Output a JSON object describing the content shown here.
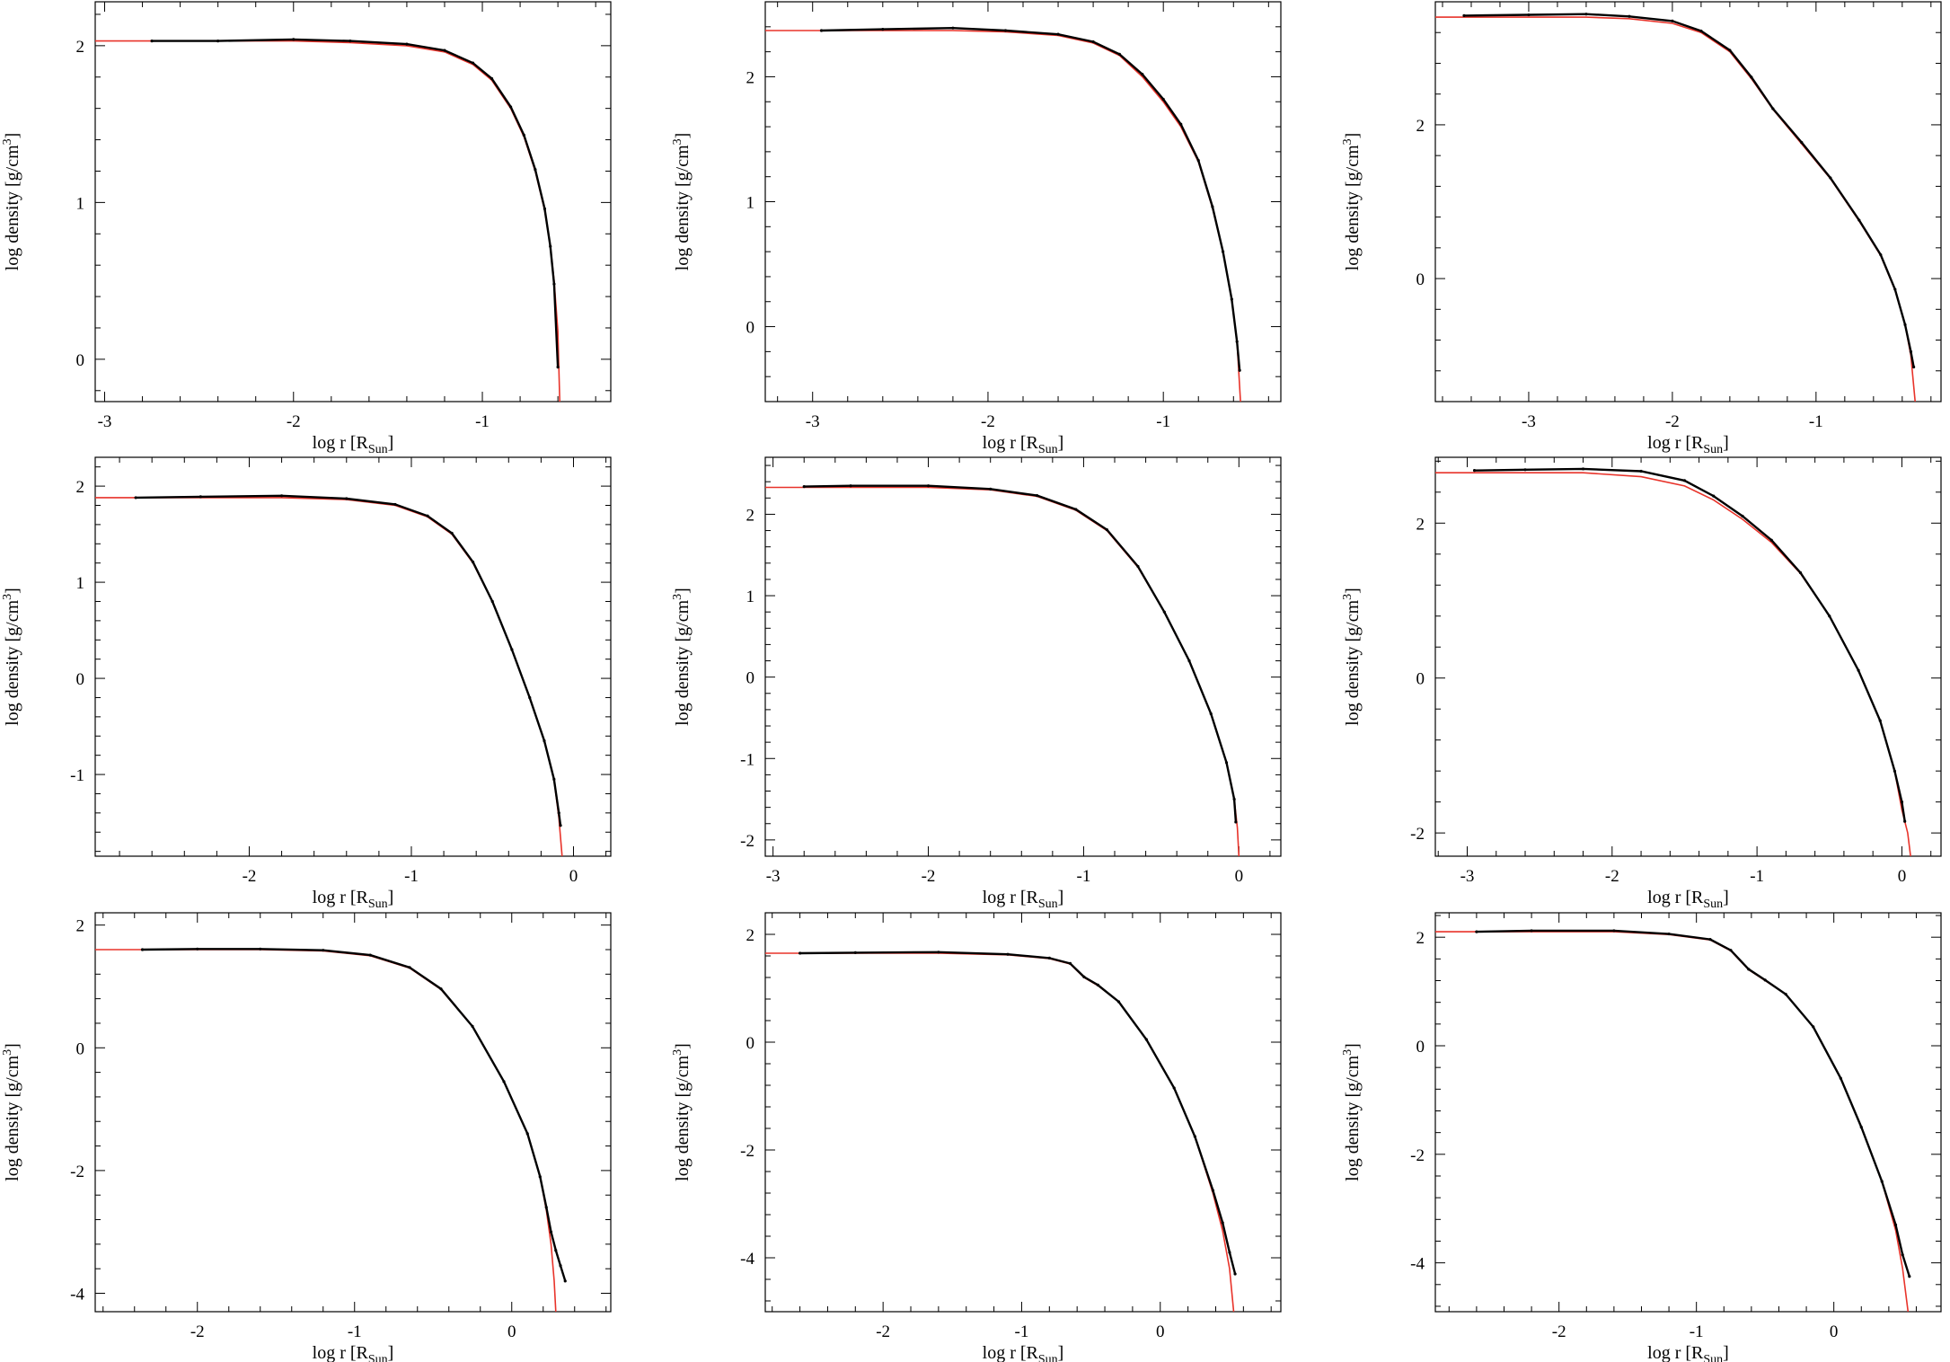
{
  "figure": {
    "xlabel_main": "log r [R",
    "xlabel_sub": "Sun",
    "xlabel_end": "]",
    "ylabel_main": "log density [g/cm",
    "ylabel_sup": "3",
    "ylabel_end": "]"
  },
  "colors": {
    "particles": "#000000",
    "fit": "#e8332a",
    "frame": "#000000",
    "background": "#ffffff"
  },
  "chart_data": [
    {
      "type": "line",
      "panel": "row1-col1",
      "xlim": [
        -3.05,
        -0.32
      ],
      "ylim": [
        -0.27,
        2.28
      ],
      "xticks": [
        -3,
        -2,
        -1
      ],
      "yticks": [
        0,
        1,
        2
      ],
      "series": [
        {
          "role": "fit-red",
          "x": [
            -3.05,
            -2.4,
            -2.0,
            -1.7,
            -1.4,
            -1.2,
            -1.05,
            -0.95,
            -0.85,
            -0.78,
            -0.72,
            -0.67,
            -0.64,
            -0.62,
            -0.6,
            -0.59
          ],
          "y": [
            2.03,
            2.03,
            2.03,
            2.02,
            2.0,
            1.96,
            1.88,
            1.78,
            1.6,
            1.42,
            1.2,
            0.95,
            0.72,
            0.5,
            0.18,
            -0.27
          ]
        },
        {
          "role": "particles-black",
          "x": [
            -2.75,
            -2.4,
            -2.0,
            -1.7,
            -1.4,
            -1.2,
            -1.05,
            -0.95,
            -0.85,
            -0.78,
            -0.72,
            -0.67,
            -0.64,
            -0.62,
            -0.6
          ],
          "y": [
            2.03,
            2.03,
            2.04,
            2.03,
            2.01,
            1.97,
            1.89,
            1.79,
            1.61,
            1.43,
            1.21,
            0.96,
            0.72,
            0.48,
            -0.05
          ]
        }
      ]
    },
    {
      "type": "line",
      "panel": "row1-col2",
      "xlim": [
        -3.27,
        -0.33
      ],
      "ylim": [
        -0.6,
        2.6
      ],
      "xticks": [
        -3,
        -2,
        -1
      ],
      "yticks": [
        0,
        1,
        2
      ],
      "series": [
        {
          "role": "fit-red",
          "x": [
            -3.27,
            -2.6,
            -2.2,
            -1.9,
            -1.6,
            -1.4,
            -1.25,
            -1.12,
            -1.0,
            -0.9,
            -0.8,
            -0.72,
            -0.66,
            -0.61,
            -0.58,
            -0.56
          ],
          "y": [
            2.37,
            2.37,
            2.37,
            2.36,
            2.33,
            2.27,
            2.17,
            2.0,
            1.8,
            1.6,
            1.32,
            0.95,
            0.6,
            0.22,
            -0.12,
            -0.6
          ]
        },
        {
          "role": "particles-black",
          "x": [
            -2.95,
            -2.6,
            -2.2,
            -1.9,
            -1.6,
            -1.4,
            -1.25,
            -1.12,
            -1.0,
            -0.9,
            -0.8,
            -0.72,
            -0.66,
            -0.61,
            -0.58,
            -0.565
          ],
          "y": [
            2.37,
            2.38,
            2.39,
            2.37,
            2.34,
            2.28,
            2.18,
            2.02,
            1.82,
            1.62,
            1.33,
            0.96,
            0.6,
            0.22,
            -0.12,
            -0.35
          ]
        }
      ]
    },
    {
      "type": "line",
      "panel": "row1-col3",
      "xlim": [
        -3.65,
        -0.13
      ],
      "ylim": [
        -1.6,
        3.6
      ],
      "xticks": [
        -3,
        -2,
        -1
      ],
      "yticks": [
        0,
        2
      ],
      "series": [
        {
          "role": "fit-red",
          "x": [
            -3.65,
            -3.0,
            -2.6,
            -2.3,
            -2.0,
            -1.8,
            -1.6,
            -1.45,
            -1.3,
            -1.1,
            -0.9,
            -0.7,
            -0.55,
            -0.45,
            -0.38,
            -0.34,
            -0.31
          ],
          "y": [
            3.4,
            3.4,
            3.4,
            3.38,
            3.32,
            3.2,
            2.95,
            2.6,
            2.2,
            1.75,
            1.3,
            0.75,
            0.3,
            -0.15,
            -0.6,
            -1.0,
            -1.6
          ]
        },
        {
          "role": "particles-black",
          "x": [
            -3.45,
            -3.0,
            -2.6,
            -2.3,
            -2.0,
            -1.8,
            -1.6,
            -1.45,
            -1.3,
            -1.1,
            -0.9,
            -0.7,
            -0.55,
            -0.45,
            -0.38,
            -0.34,
            -0.32
          ],
          "y": [
            3.42,
            3.43,
            3.44,
            3.41,
            3.35,
            3.22,
            2.97,
            2.62,
            2.21,
            1.77,
            1.31,
            0.76,
            0.31,
            -0.14,
            -0.6,
            -0.95,
            -1.15
          ]
        }
      ]
    },
    {
      "type": "line",
      "panel": "row2-col1",
      "xlim": [
        -2.95,
        0.23
      ],
      "ylim": [
        -1.85,
        2.3
      ],
      "xticks": [
        -2,
        -1,
        0
      ],
      "yticks": [
        -1,
        0,
        1,
        2
      ],
      "series": [
        {
          "role": "fit-red",
          "x": [
            -2.95,
            -2.3,
            -1.8,
            -1.4,
            -1.1,
            -0.9,
            -0.75,
            -0.62,
            -0.5,
            -0.38,
            -0.27,
            -0.18,
            -0.12,
            -0.09,
            -0.07
          ],
          "y": [
            1.88,
            1.88,
            1.88,
            1.86,
            1.8,
            1.68,
            1.5,
            1.2,
            0.8,
            0.3,
            -0.2,
            -0.65,
            -1.05,
            -1.45,
            -1.85
          ]
        },
        {
          "role": "particles-black",
          "x": [
            -2.7,
            -2.3,
            -1.8,
            -1.4,
            -1.1,
            -0.9,
            -0.75,
            -0.62,
            -0.5,
            -0.38,
            -0.27,
            -0.18,
            -0.12,
            -0.09,
            -0.08
          ],
          "y": [
            1.88,
            1.89,
            1.9,
            1.87,
            1.81,
            1.69,
            1.51,
            1.21,
            0.8,
            0.3,
            -0.2,
            -0.65,
            -1.05,
            -1.4,
            -1.53
          ]
        }
      ]
    },
    {
      "type": "line",
      "panel": "row2-col2",
      "xlim": [
        -3.05,
        0.27
      ],
      "ylim": [
        -2.2,
        2.7
      ],
      "xticks": [
        -3,
        -2,
        -1,
        0
      ],
      "yticks": [
        -2,
        -1,
        0,
        1,
        2
      ],
      "series": [
        {
          "role": "fit-red",
          "x": [
            -3.05,
            -2.5,
            -2.0,
            -1.6,
            -1.3,
            -1.05,
            -0.85,
            -0.65,
            -0.48,
            -0.32,
            -0.18,
            -0.08,
            -0.03,
            -0.01,
            0.0
          ],
          "y": [
            2.33,
            2.33,
            2.33,
            2.3,
            2.22,
            2.05,
            1.8,
            1.35,
            0.8,
            0.2,
            -0.45,
            -1.05,
            -1.5,
            -1.85,
            -2.2
          ]
        },
        {
          "role": "particles-black",
          "x": [
            -2.8,
            -2.5,
            -2.0,
            -1.6,
            -1.3,
            -1.05,
            -0.85,
            -0.65,
            -0.48,
            -0.32,
            -0.18,
            -0.08,
            -0.03,
            -0.02
          ],
          "y": [
            2.34,
            2.35,
            2.35,
            2.31,
            2.23,
            2.06,
            1.81,
            1.36,
            0.8,
            0.2,
            -0.45,
            -1.05,
            -1.5,
            -1.78
          ]
        }
      ]
    },
    {
      "type": "line",
      "panel": "row2-col3",
      "xlim": [
        -3.22,
        0.27
      ],
      "ylim": [
        -2.3,
        2.85
      ],
      "xticks": [
        -3,
        -2,
        -1,
        0
      ],
      "yticks": [
        -2,
        0,
        2
      ],
      "series": [
        {
          "role": "fit-red",
          "x": [
            -3.22,
            -2.6,
            -2.2,
            -1.8,
            -1.5,
            -1.3,
            -1.1,
            -0.9,
            -0.7,
            -0.5,
            -0.3,
            -0.15,
            -0.05,
            0.0,
            0.04,
            0.06
          ],
          "y": [
            2.65,
            2.65,
            2.65,
            2.6,
            2.48,
            2.3,
            2.05,
            1.75,
            1.35,
            0.8,
            0.1,
            -0.55,
            -1.2,
            -1.7,
            -2.0,
            -2.3
          ]
        },
        {
          "role": "particles-black",
          "x": [
            -2.95,
            -2.6,
            -2.2,
            -1.8,
            -1.5,
            -1.3,
            -1.1,
            -0.9,
            -0.7,
            -0.5,
            -0.3,
            -0.15,
            -0.05,
            0.0,
            0.02
          ],
          "y": [
            2.68,
            2.69,
            2.7,
            2.67,
            2.55,
            2.35,
            2.09,
            1.78,
            1.36,
            0.8,
            0.1,
            -0.55,
            -1.2,
            -1.6,
            -1.85
          ]
        }
      ]
    },
    {
      "type": "line",
      "panel": "row3-col1",
      "xlim": [
        -2.65,
        0.63
      ],
      "ylim": [
        -4.3,
        2.2
      ],
      "xticks": [
        -2,
        -1,
        0
      ],
      "yticks": [
        -4,
        -2,
        0,
        2
      ],
      "series": [
        {
          "role": "fit-red",
          "x": [
            -2.65,
            -2.0,
            -1.6,
            -1.2,
            -0.9,
            -0.65,
            -0.45,
            -0.25,
            -0.05,
            0.1,
            0.18,
            0.22,
            0.25,
            0.27,
            0.28
          ],
          "y": [
            1.6,
            1.6,
            1.6,
            1.58,
            1.5,
            1.3,
            0.95,
            0.35,
            -0.55,
            -1.4,
            -2.1,
            -2.65,
            -3.2,
            -3.8,
            -4.3
          ]
        },
        {
          "role": "particles-black",
          "x": [
            -2.35,
            -2.0,
            -1.6,
            -1.2,
            -0.9,
            -0.65,
            -0.45,
            -0.25,
            -0.05,
            0.1,
            0.18,
            0.22,
            0.25,
            0.28,
            0.31,
            0.34
          ],
          "y": [
            1.6,
            1.61,
            1.61,
            1.59,
            1.51,
            1.31,
            0.96,
            0.35,
            -0.55,
            -1.4,
            -2.1,
            -2.6,
            -3.0,
            -3.3,
            -3.55,
            -3.8
          ]
        }
      ]
    },
    {
      "type": "line",
      "panel": "row3-col2",
      "xlim": [
        -2.85,
        0.87
      ],
      "ylim": [
        -5.0,
        2.4
      ],
      "xticks": [
        -2,
        -1,
        0
      ],
      "yticks": [
        -4,
        -2,
        0,
        2
      ],
      "series": [
        {
          "role": "fit-red",
          "x": [
            -2.85,
            -2.2,
            -1.6,
            -1.1,
            -0.8,
            -0.65,
            -0.55,
            -0.45,
            -0.3,
            -0.1,
            0.1,
            0.25,
            0.38,
            0.45,
            0.5,
            0.53
          ],
          "y": [
            1.65,
            1.65,
            1.65,
            1.62,
            1.55,
            1.45,
            1.2,
            1.05,
            0.75,
            0.05,
            -0.85,
            -1.75,
            -2.8,
            -3.5,
            -4.2,
            -5.0
          ]
        },
        {
          "role": "particles-black",
          "x": [
            -2.6,
            -2.2,
            -1.6,
            -1.1,
            -0.8,
            -0.65,
            -0.55,
            -0.45,
            -0.3,
            -0.1,
            0.1,
            0.25,
            0.38,
            0.45,
            0.5,
            0.54
          ],
          "y": [
            1.65,
            1.66,
            1.67,
            1.63,
            1.56,
            1.46,
            1.21,
            1.06,
            0.75,
            0.05,
            -0.85,
            -1.75,
            -2.75,
            -3.35,
            -3.9,
            -4.3
          ]
        }
      ]
    },
    {
      "type": "line",
      "panel": "row3-col3",
      "xlim": [
        -2.9,
        0.78
      ],
      "ylim": [
        -4.9,
        2.45
      ],
      "xticks": [
        -2,
        -1,
        0
      ],
      "yticks": [
        -4,
        -2,
        0,
        2
      ],
      "series": [
        {
          "role": "fit-red",
          "x": [
            -2.9,
            -2.2,
            -1.6,
            -1.2,
            -0.9,
            -0.75,
            -0.62,
            -0.5,
            -0.35,
            -0.15,
            0.05,
            0.2,
            0.35,
            0.45,
            0.5,
            0.54
          ],
          "y": [
            2.1,
            2.1,
            2.1,
            2.05,
            1.95,
            1.75,
            1.4,
            1.2,
            0.95,
            0.35,
            -0.6,
            -1.5,
            -2.5,
            -3.4,
            -4.1,
            -4.9
          ]
        },
        {
          "role": "particles-black",
          "x": [
            -2.6,
            -2.2,
            -1.6,
            -1.2,
            -0.9,
            -0.75,
            -0.62,
            -0.5,
            -0.35,
            -0.15,
            0.05,
            0.2,
            0.35,
            0.45,
            0.5,
            0.55
          ],
          "y": [
            2.1,
            2.12,
            2.12,
            2.06,
            1.96,
            1.76,
            1.41,
            1.21,
            0.95,
            0.35,
            -0.6,
            -1.5,
            -2.5,
            -3.3,
            -3.85,
            -4.25
          ]
        }
      ]
    }
  ]
}
